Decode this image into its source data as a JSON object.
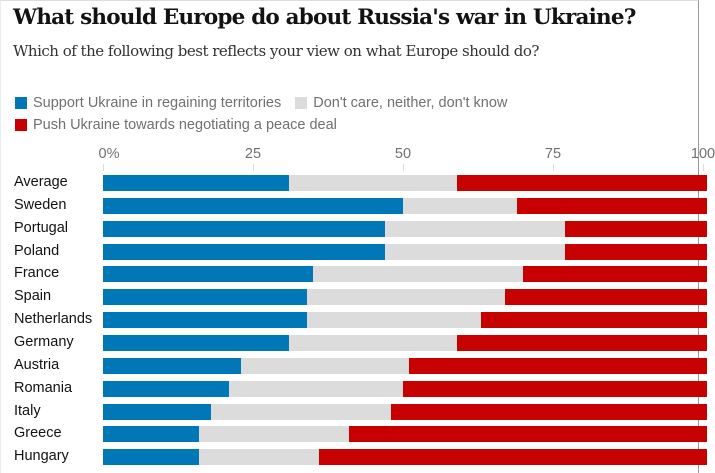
{
  "chart_data": {
    "type": "bar",
    "orientation": "horizontal",
    "stacked": true,
    "title": "What should Europe do about Russia's war in Ukraine?",
    "subtitle": "Which of the following best reflects your view on what Europe should do?",
    "xlabel": "",
    "ylabel": "",
    "xlim": [
      0,
      100
    ],
    "xticks": [
      0,
      25,
      50,
      75,
      100
    ],
    "xtick_labels": [
      "0%",
      "25",
      "50",
      "75",
      "100"
    ],
    "legend_position": "top-left",
    "categories": [
      "Average",
      "Sweden",
      "Portugal",
      "Poland",
      "France",
      "Spain",
      "Netherlands",
      "Germany",
      "Austria",
      "Romania",
      "Italy",
      "Greece",
      "Hungary"
    ],
    "series": [
      {
        "name": "Support Ukraine in regaining territories",
        "color": "#0077b6",
        "values": [
          31,
          50,
          47,
          47,
          35,
          34,
          34,
          31,
          23,
          21,
          18,
          16,
          16
        ]
      },
      {
        "name": "Don't care, neither, don't know",
        "color": "#dcdcdc",
        "values": [
          28,
          19,
          30,
          30,
          35,
          33,
          29,
          28,
          28,
          29,
          30,
          25,
          20
        ]
      },
      {
        "name": "Push Ukraine towards negotiating a peace deal",
        "color": "#c70000",
        "values": [
          41,
          31,
          23,
          23,
          30,
          33,
          37,
          41,
          49,
          50,
          52,
          59,
          64
        ]
      }
    ]
  }
}
